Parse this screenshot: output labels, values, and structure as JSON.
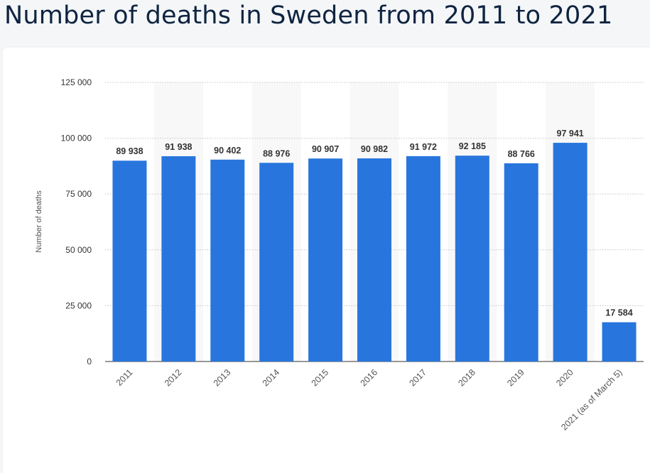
{
  "title": "Number of deaths in Sweden from 2011 to 2021",
  "chart_data": {
    "type": "bar",
    "categories": [
      "2011",
      "2012",
      "2013",
      "2014",
      "2015",
      "2016",
      "2017",
      "2018",
      "2019",
      "2020",
      "2021 (as of March 5)"
    ],
    "values": [
      89938,
      91938,
      90402,
      88976,
      90907,
      90982,
      91972,
      92185,
      88766,
      97941,
      17584
    ],
    "value_labels": [
      "89 938",
      "91 938",
      "90 402",
      "88 976",
      "90 907",
      "90 982",
      "91 972",
      "92 185",
      "88 766",
      "97 941",
      "17 584"
    ],
    "ylabel": "Number of deaths",
    "ylim": [
      0,
      125000
    ],
    "yticks": [
      0,
      25000,
      50000,
      75000,
      100000,
      125000
    ],
    "ytick_labels": [
      "0",
      "25 000",
      "50 000",
      "75 000",
      "100 000",
      "125 000"
    ],
    "grid": true,
    "bar_color": "#2876dd"
  }
}
